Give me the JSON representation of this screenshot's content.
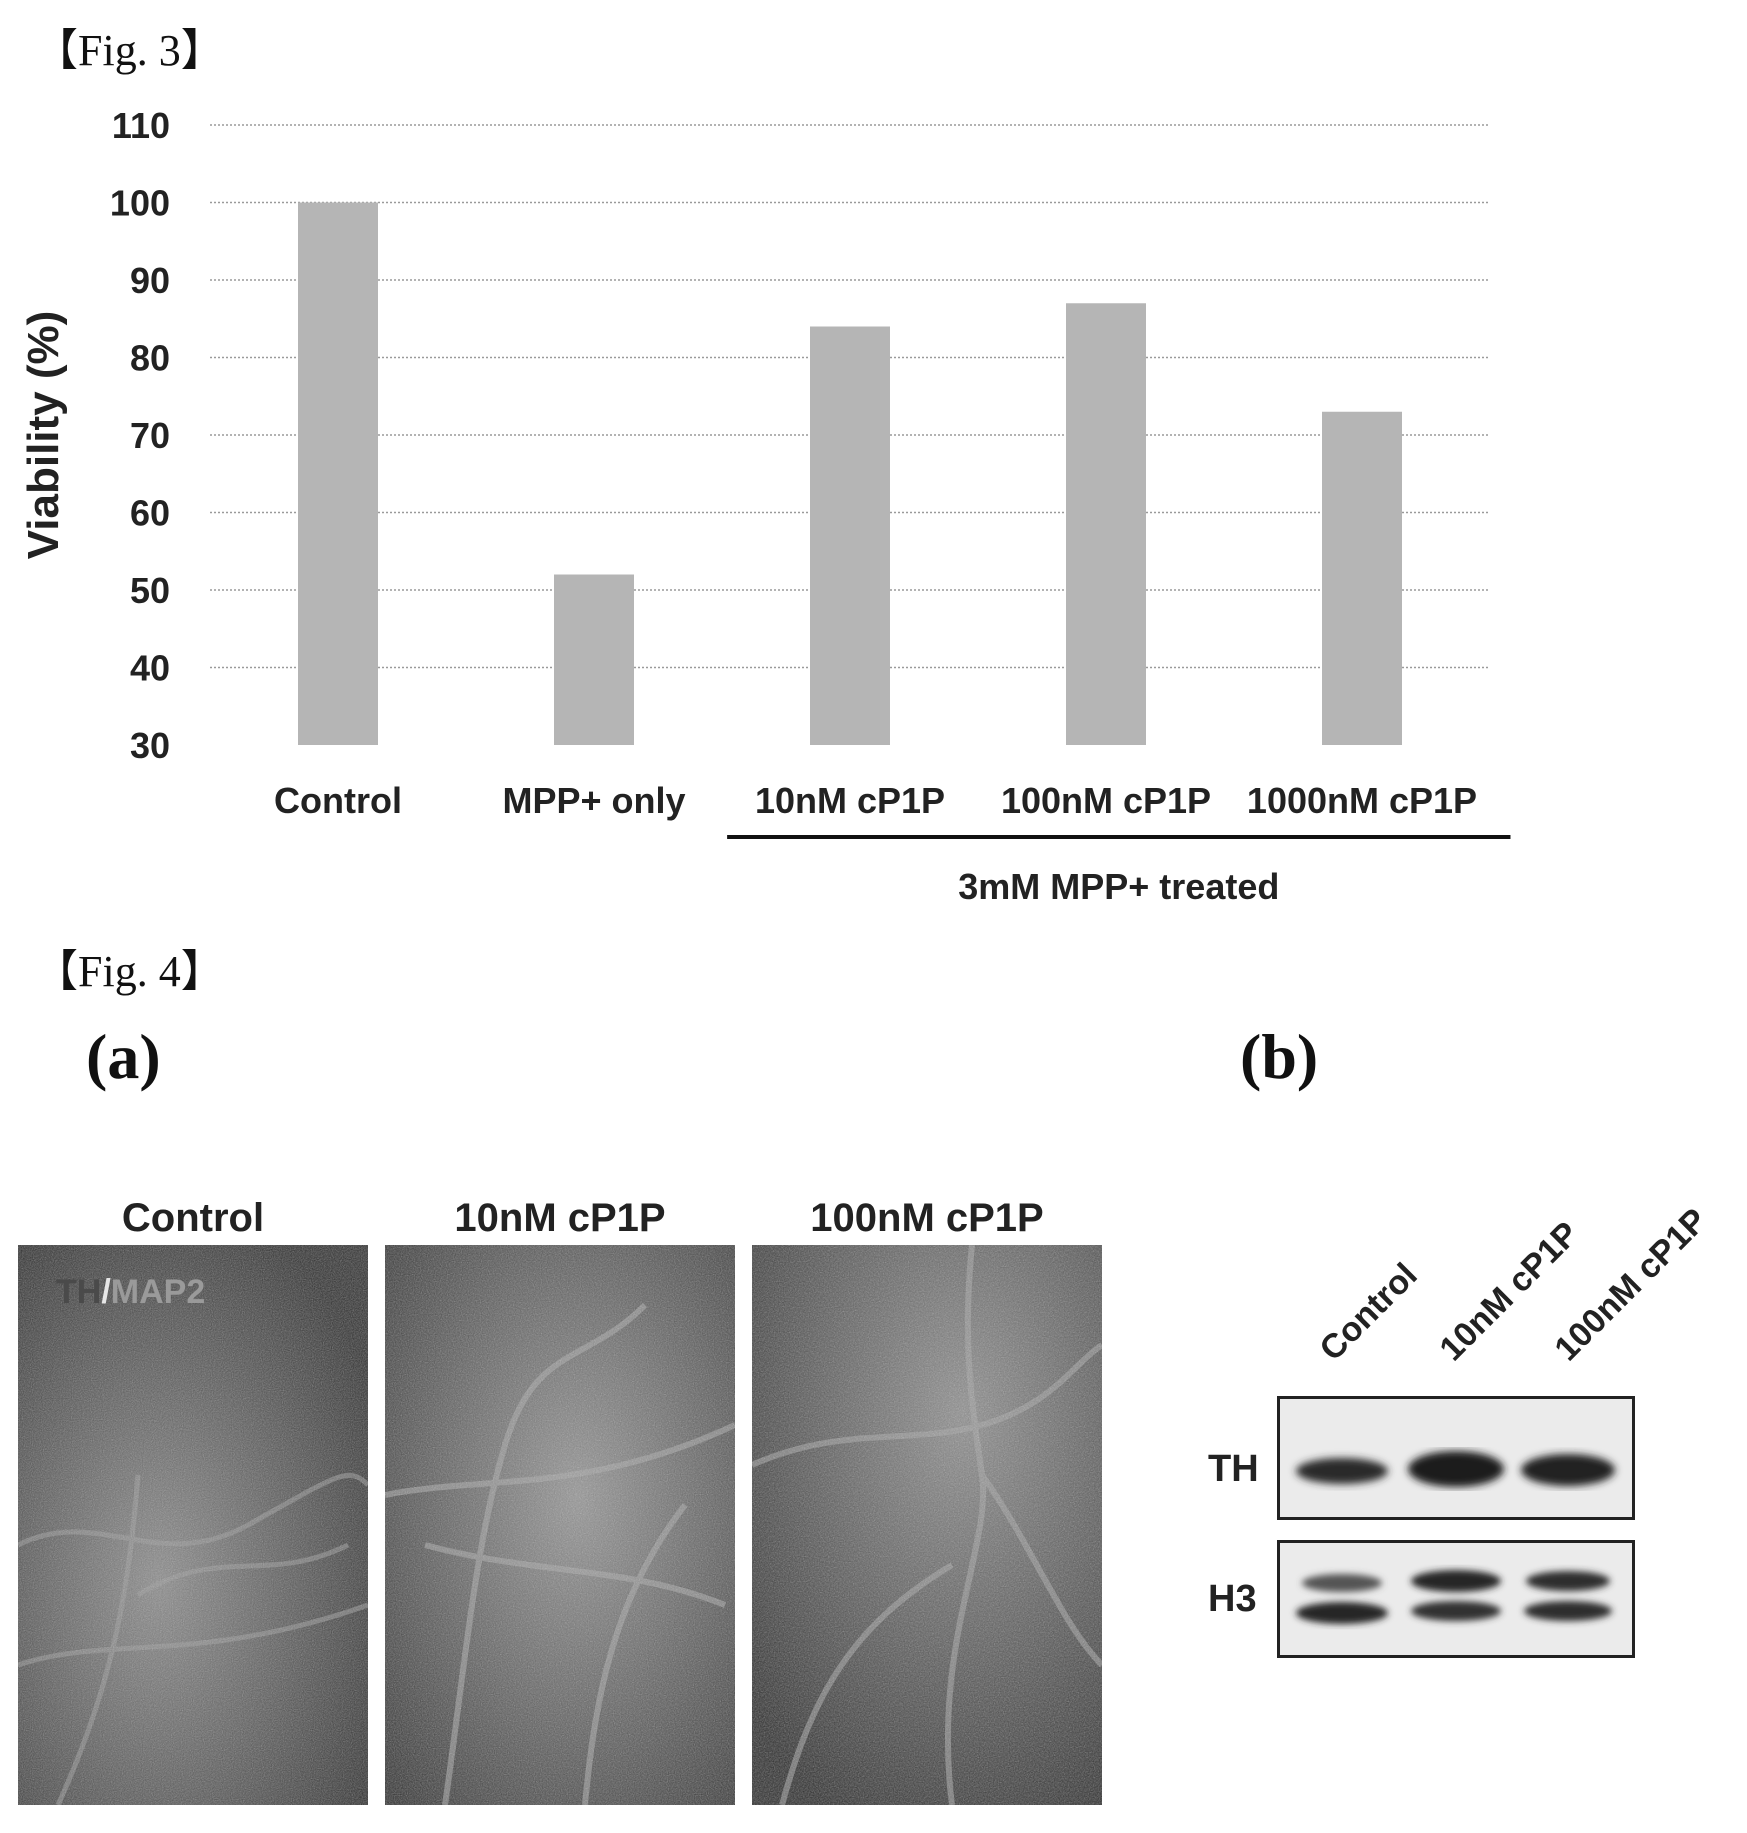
{
  "fig3": {
    "label": "【Fig. 3】"
  },
  "fig4": {
    "label": "【Fig. 4】",
    "panel_a": {
      "letter": "(a)",
      "overlay_th": "TH",
      "overlay_slash": "/",
      "overlay_map2": "MAP2",
      "images": [
        {
          "title": "Control"
        },
        {
          "title": "10nM cP1P"
        },
        {
          "title": "100nM cP1P"
        }
      ]
    },
    "panel_b": {
      "letter": "(b)",
      "lanes": [
        "Control",
        "10nM cP1P",
        "100nM cP1P"
      ],
      "rows": [
        "TH",
        "H3"
      ]
    }
  },
  "chart_data": {
    "type": "bar",
    "title": "",
    "xlabel": "",
    "ylabel": "Viability (%)",
    "ylim": [
      30,
      110
    ],
    "yticks": [
      30,
      40,
      50,
      60,
      70,
      80,
      90,
      100,
      110
    ],
    "grid": true,
    "categories": [
      "Control",
      "MPP+ only",
      "10nM cP1P",
      "100nM cP1P",
      "1000nM cP1P"
    ],
    "values": [
      100,
      52,
      84,
      87,
      73
    ],
    "bar_color": "#b5b5b5",
    "group_annotation": {
      "label": "3mM MPP+ treated",
      "categories": [
        "10nM cP1P",
        "100nM cP1P",
        "1000nM cP1P"
      ]
    }
  }
}
